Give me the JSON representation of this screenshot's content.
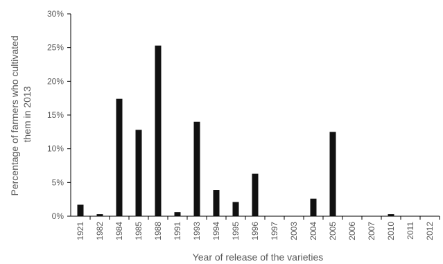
{
  "chart_data": {
    "type": "bar",
    "title": "",
    "xlabel": "Year of release of the varieties",
    "ylabel_lines": [
      "Percentage of farmers who cultivated",
      "them in 2013"
    ],
    "categories": [
      "1921",
      "1982",
      "1984",
      "1985",
      "1988",
      "1991",
      "1993",
      "1994",
      "1995",
      "1996",
      "1997",
      "2003",
      "2004",
      "2005",
      "2006",
      "2007",
      "2010",
      "2011",
      "2012"
    ],
    "values": [
      1.7,
      0.3,
      17.4,
      12.8,
      25.3,
      0.6,
      14.0,
      3.9,
      2.1,
      6.3,
      0,
      0,
      2.6,
      12.5,
      0,
      0,
      0.3,
      0,
      0
    ],
    "ylim": [
      0,
      30
    ],
    "yticks": [
      0,
      5,
      10,
      15,
      20,
      25,
      30
    ],
    "ytick_labels": [
      "0%",
      "5%",
      "10%",
      "15%",
      "20%",
      "25%",
      "30%"
    ],
    "grid": false,
    "bar_color": "#111111",
    "legend": "none"
  }
}
